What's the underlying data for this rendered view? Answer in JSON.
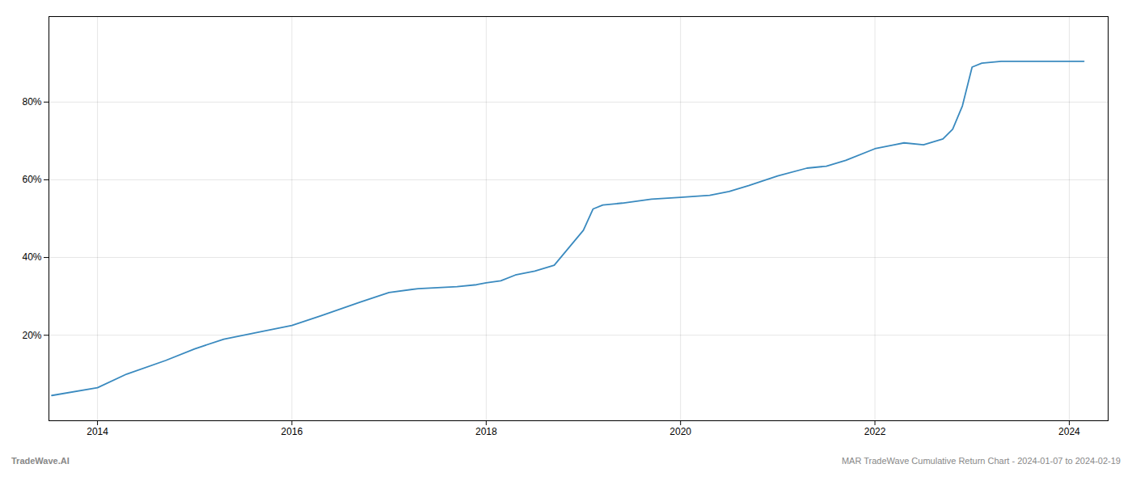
{
  "chart_data": {
    "type": "line",
    "x": [
      2013.53,
      2014.0,
      2014.3,
      2014.7,
      2015.0,
      2015.3,
      2015.7,
      2016.0,
      2016.3,
      2016.7,
      2017.0,
      2017.3,
      2017.7,
      2017.9,
      2018.0,
      2018.15,
      2018.3,
      2018.5,
      2018.7,
      2019.0,
      2019.1,
      2019.2,
      2019.4,
      2019.7,
      2020.0,
      2020.3,
      2020.5,
      2020.7,
      2021.0,
      2021.3,
      2021.5,
      2021.7,
      2022.0,
      2022.2,
      2022.3,
      2022.5,
      2022.7,
      2022.8,
      2022.9,
      2023.0,
      2023.1,
      2023.3,
      2023.6,
      2023.8,
      2024.0,
      2024.15
    ],
    "values": [
      4.5,
      6.5,
      10.0,
      13.5,
      16.5,
      19.0,
      21.0,
      22.5,
      25.0,
      28.5,
      31.0,
      32.0,
      32.5,
      33.0,
      33.5,
      34.0,
      35.5,
      36.5,
      38.0,
      47.0,
      52.5,
      53.5,
      54.0,
      55.0,
      55.5,
      56.0,
      57.0,
      58.5,
      61.0,
      63.0,
      63.5,
      65.0,
      68.0,
      69.0,
      69.5,
      69.0,
      70.5,
      73.0,
      79.0,
      89.0,
      90.0,
      90.5,
      90.5,
      90.5,
      90.5,
      90.5
    ],
    "color": "#3a8abf",
    "xlim": [
      2013.5,
      2024.4
    ],
    "xticks": [
      2014,
      2016,
      2018,
      2020,
      2022,
      2024
    ],
    "ylim": [
      -2,
      102
    ],
    "yticks": [
      {
        "value": 20,
        "label": "20%"
      },
      {
        "value": 40,
        "label": "40%"
      },
      {
        "value": 60,
        "label": "60%"
      },
      {
        "value": 80,
        "label": "80%"
      }
    ],
    "grid": true,
    "annotations": [
      "TradeWave.AI",
      "MAR TradeWave Cumulative Return Chart - 2024-01-07 to 2024-02-19"
    ]
  }
}
